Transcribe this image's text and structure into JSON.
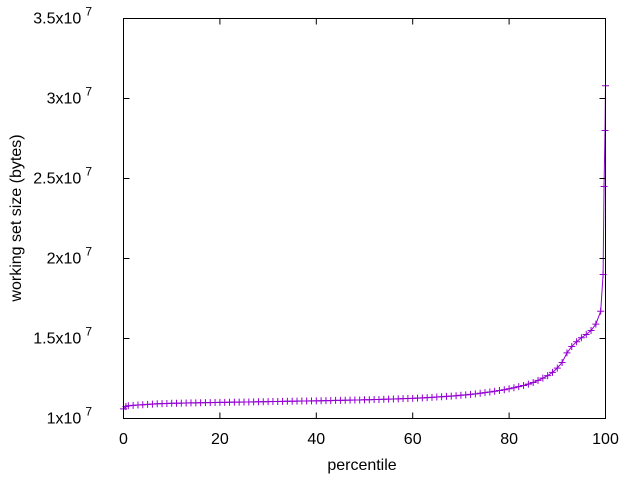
{
  "chart_data": {
    "type": "line",
    "title": "",
    "xlabel": "percentile",
    "ylabel": "working set size (bytes)",
    "xlim": [
      0,
      100
    ],
    "ylim": [
      10000000,
      35000000
    ],
    "grid": false,
    "legend": "none",
    "x_ticks": [
      {
        "value": 0,
        "label": "0"
      },
      {
        "value": 20,
        "label": "20"
      },
      {
        "value": 40,
        "label": "40"
      },
      {
        "value": 60,
        "label": "60"
      },
      {
        "value": 80,
        "label": "80"
      },
      {
        "value": 100,
        "label": "100"
      }
    ],
    "y_ticks": [
      {
        "value": 10000000,
        "mantissa": "1x10",
        "exponent": "7"
      },
      {
        "value": 15000000,
        "mantissa": "1.5x10",
        "exponent": "7"
      },
      {
        "value": 20000000,
        "mantissa": "2x10",
        "exponent": "7"
      },
      {
        "value": 25000000,
        "mantissa": "2.5x10",
        "exponent": "7"
      },
      {
        "value": 30000000,
        "mantissa": "3x10",
        "exponent": "7"
      },
      {
        "value": 35000000,
        "mantissa": "3.5x10",
        "exponent": "7"
      }
    ],
    "series": [
      {
        "color": "#9400d3",
        "marker": "plus",
        "points": [
          [
            0,
            10600000
          ],
          [
            0.5,
            10750000
          ],
          [
            1,
            10800000
          ],
          [
            2,
            10820000
          ],
          [
            3,
            10840000
          ],
          [
            4,
            10860000
          ],
          [
            5,
            10880000
          ],
          [
            6,
            10900000
          ],
          [
            7,
            10920000
          ],
          [
            8,
            10930000
          ],
          [
            9,
            10940000
          ],
          [
            10,
            10950000
          ],
          [
            11,
            10955000
          ],
          [
            12,
            10960000
          ],
          [
            13,
            10970000
          ],
          [
            14,
            10975000
          ],
          [
            15,
            10980000
          ],
          [
            16,
            10985000
          ],
          [
            17,
            10990000
          ],
          [
            18,
            10995000
          ],
          [
            19,
            11000000
          ],
          [
            20,
            11005000
          ],
          [
            21,
            11010000
          ],
          [
            22,
            11015000
          ],
          [
            23,
            11020000
          ],
          [
            24,
            11025000
          ],
          [
            25,
            11030000
          ],
          [
            26,
            11035000
          ],
          [
            27,
            11040000
          ],
          [
            28,
            11045000
          ],
          [
            29,
            11050000
          ],
          [
            30,
            11055000
          ],
          [
            31,
            11060000
          ],
          [
            32,
            11065000
          ],
          [
            33,
            11070000
          ],
          [
            34,
            11075000
          ],
          [
            35,
            11080000
          ],
          [
            36,
            11085000
          ],
          [
            37,
            11090000
          ],
          [
            38,
            11095000
          ],
          [
            39,
            11100000
          ],
          [
            40,
            11105000
          ],
          [
            41,
            11110000
          ],
          [
            42,
            11115000
          ],
          [
            43,
            11120000
          ],
          [
            44,
            11130000
          ],
          [
            45,
            11135000
          ],
          [
            46,
            11140000
          ],
          [
            47,
            11150000
          ],
          [
            48,
            11155000
          ],
          [
            49,
            11160000
          ],
          [
            50,
            11170000
          ],
          [
            51,
            11175000
          ],
          [
            52,
            11185000
          ],
          [
            53,
            11190000
          ],
          [
            54,
            11200000
          ],
          [
            55,
            11210000
          ],
          [
            56,
            11220000
          ],
          [
            57,
            11230000
          ],
          [
            58,
            11240000
          ],
          [
            59,
            11250000
          ],
          [
            60,
            11260000
          ],
          [
            61,
            11275000
          ],
          [
            62,
            11290000
          ],
          [
            63,
            11305000
          ],
          [
            64,
            11320000
          ],
          [
            65,
            11340000
          ],
          [
            66,
            11360000
          ],
          [
            67,
            11380000
          ],
          [
            68,
            11400000
          ],
          [
            69,
            11420000
          ],
          [
            70,
            11450000
          ],
          [
            71,
            11480000
          ],
          [
            72,
            11510000
          ],
          [
            73,
            11540000
          ],
          [
            74,
            11580000
          ],
          [
            75,
            11620000
          ],
          [
            76,
            11660000
          ],
          [
            77,
            11700000
          ],
          [
            78,
            11750000
          ],
          [
            79,
            11800000
          ],
          [
            80,
            11860000
          ],
          [
            81,
            11920000
          ],
          [
            82,
            11990000
          ],
          [
            83,
            12060000
          ],
          [
            84,
            12150000
          ],
          [
            85,
            12250000
          ],
          [
            86,
            12380000
          ],
          [
            87,
            12520000
          ],
          [
            88,
            12680000
          ],
          [
            89,
            12880000
          ],
          [
            90,
            13150000
          ],
          [
            91,
            13500000
          ],
          [
            92,
            14100000
          ],
          [
            93,
            14500000
          ],
          [
            94,
            14800000
          ],
          [
            95,
            15050000
          ],
          [
            96,
            15250000
          ],
          [
            97,
            15500000
          ],
          [
            98,
            15900000
          ],
          [
            99,
            16700000
          ],
          [
            99.5,
            19000000
          ],
          [
            99.7,
            24500000
          ],
          [
            99.9,
            28000000
          ],
          [
            100,
            30800000
          ]
        ]
      }
    ]
  }
}
